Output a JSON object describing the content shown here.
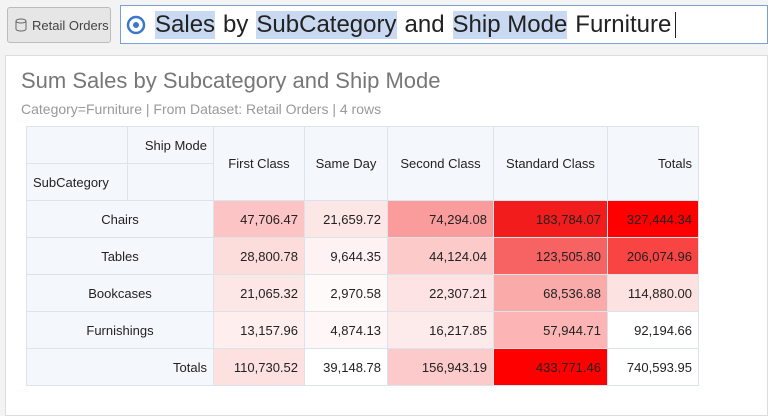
{
  "toolbar": {
    "dataset_button": "Retail Orders",
    "query": [
      {
        "text": "Sales",
        "highlighted": true
      },
      {
        "text": "by",
        "highlighted": false
      },
      {
        "text": "SubCategory",
        "highlighted": true
      },
      {
        "text": "and",
        "highlighted": false
      },
      {
        "text": "Ship Mode",
        "highlighted": true
      },
      {
        "text": "Furniture",
        "highlighted": false
      }
    ]
  },
  "report": {
    "title": "Sum Sales by Subcategory and Ship Mode",
    "subtitle": "Category=Furniture | From Dataset: Retail Orders | 4 rows",
    "table": {
      "column_header": "Ship Mode",
      "row_header": "SubCategory",
      "columns": [
        "First Class",
        "Same Day",
        "Second Class",
        "Standard Class",
        "Totals"
      ],
      "rows": [
        {
          "label": "Chairs",
          "cells": [
            "47,706.47",
            "21,659.72",
            "74,294.08",
            "183,784.07",
            "327,444.34"
          ],
          "colors": [
            "#fcc4c4",
            "#fde6e6",
            "#fb9c9c",
            "#f21c1c",
            "#ff0000"
          ]
        },
        {
          "label": "Tables",
          "cells": [
            "28,800.78",
            "9,644.35",
            "44,124.04",
            "123,505.80",
            "206,074.96"
          ],
          "colors": [
            "#fddcdc",
            "#fff2f2",
            "#fdcaca",
            "#f76262",
            "#f94444"
          ]
        },
        {
          "label": "Bookcases",
          "cells": [
            "21,065.32",
            "2,970.58",
            "22,307.21",
            "68,536.88",
            "114,880.00"
          ],
          "colors": [
            "#fde6e6",
            "#fffafa",
            "#fde3e3",
            "#fbaaaa",
            "#fde2e2"
          ]
        },
        {
          "label": "Furnishings",
          "cells": [
            "13,157.96",
            "4,874.13",
            "16,217.85",
            "57,944.71",
            "92,194.66"
          ],
          "colors": [
            "#feeeee",
            "#fff7f7",
            "#fdeaea",
            "#fcb4b4",
            "#ffffff"
          ]
        },
        {
          "label": "Totals",
          "cells": [
            "110,730.52",
            "39,148.78",
            "156,943.19",
            "433,771.46",
            "740,593.95"
          ],
          "colors": [
            "#fde0e0",
            "#ffffff",
            "#fccaca",
            "#ff0000",
            "#ffffff"
          ]
        }
      ]
    }
  }
}
